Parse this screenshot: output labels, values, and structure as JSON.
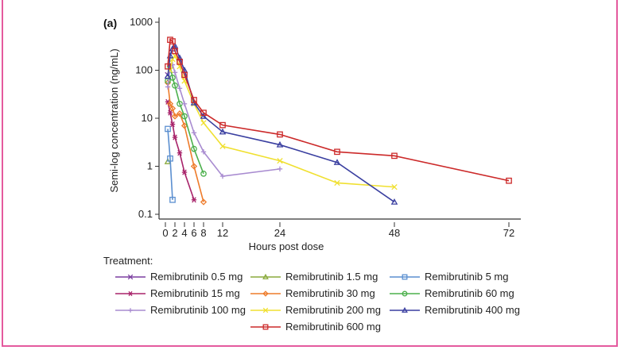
{
  "chart_data": {
    "type": "line",
    "panel_label": "(a)",
    "title": "",
    "xlabel": "Hours post dose",
    "ylabel": "Semi-log concentration (ng/mL)",
    "yscale": "log",
    "ylim": [
      0.1,
      1000
    ],
    "xlim": [
      0,
      72
    ],
    "x_ticks": [
      0,
      2,
      4,
      6,
      8,
      12,
      24,
      48,
      72
    ],
    "y_ticks": [
      0.1,
      1,
      10,
      100,
      1000
    ],
    "y_tick_labels": [
      "0.1",
      "1",
      "10",
      "100",
      "1000"
    ],
    "grid": false,
    "legend_title": "Treatment:",
    "legend_position": "bottom",
    "series": [
      {
        "name": "Remibrutinib 0.5 mg",
        "color": "#7b3fa0",
        "marker": "x",
        "x": [
          0.5
        ],
        "y": [
          80
        ]
      },
      {
        "name": "Remibrutinib 1.5 mg",
        "color": "#8aaa3c",
        "marker": "triangle",
        "x": [
          0.5
        ],
        "y": [
          1.25
        ]
      },
      {
        "name": "Remibrutinib 5 mg",
        "color": "#5b8fd0",
        "marker": "square",
        "x": [
          0.5,
          1,
          1.5
        ],
        "y": [
          6,
          1.45,
          0.2
        ]
      },
      {
        "name": "Remibrutinib 15 mg",
        "color": "#a8236a",
        "marker": "asterisk",
        "x": [
          0.5,
          1,
          1.5,
          2,
          3,
          4,
          6
        ],
        "y": [
          22,
          13,
          7.5,
          4,
          1.9,
          0.75,
          0.2
        ]
      },
      {
        "name": "Remibrutinib 30 mg",
        "color": "#ee7b2a",
        "marker": "diamond",
        "x": [
          0.5,
          1,
          1.5,
          2,
          3,
          4,
          6,
          8
        ],
        "y": [
          55,
          20,
          16,
          11,
          12.5,
          7,
          1.0,
          0.18
        ]
      },
      {
        "name": "Remibrutinib 60 mg",
        "color": "#4cb04c",
        "marker": "circle",
        "x": [
          0.5,
          1,
          1.5,
          2,
          3,
          4,
          6,
          8
        ],
        "y": [
          60,
          120,
          70,
          48,
          20,
          11,
          2.3,
          0.7
        ]
      },
      {
        "name": "Remibrutinib  100 mg",
        "color": "#a88bd0",
        "marker": "plus",
        "x": [
          0.5,
          1,
          1.5,
          2,
          3,
          4,
          6,
          8,
          12,
          24
        ],
        "y": [
          45,
          125,
          130,
          90,
          42,
          20,
          5,
          2.0,
          0.62,
          0.88
        ]
      },
      {
        "name": "Remibrutinib  200 mg",
        "color": "#f0e030",
        "marker": "x",
        "x": [
          1,
          1.5,
          2,
          3,
          4,
          6,
          8,
          12,
          24,
          36,
          48
        ],
        "y": [
          100,
          170,
          200,
          120,
          60,
          20,
          8,
          2.6,
          1.3,
          0.45,
          0.37
        ]
      },
      {
        "name": "Remibrutinib  400 mg",
        "color": "#3a3fa0",
        "marker": "triangle",
        "x": [
          0.5,
          1,
          1.5,
          2,
          3,
          4,
          6,
          8,
          12,
          24,
          36,
          48
        ],
        "y": [
          75,
          200,
          280,
          320,
          180,
          100,
          21,
          11,
          5.2,
          2.8,
          1.2,
          0.18
        ]
      },
      {
        "name": "Remibrutinib  600 mg",
        "color": "#cc2a2a",
        "marker": "square",
        "x": [
          0.5,
          1,
          1.5,
          2,
          3,
          4,
          6,
          8,
          12,
          24,
          36,
          48,
          72
        ],
        "y": [
          120,
          430,
          400,
          250,
          150,
          80,
          24,
          13,
          7.2,
          4.6,
          2.0,
          1.65,
          0.5
        ]
      }
    ]
  }
}
